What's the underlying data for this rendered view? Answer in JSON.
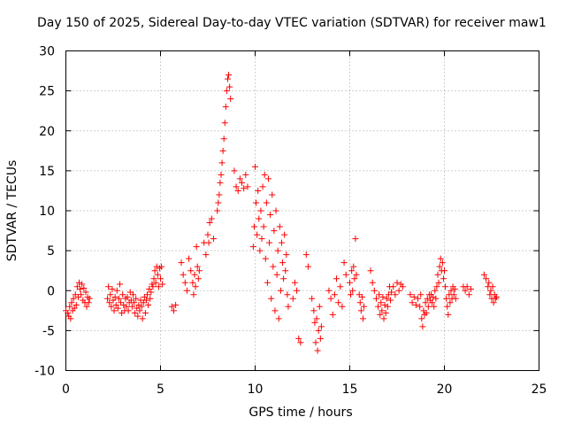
{
  "chart_data": {
    "type": "scatter",
    "title": "Day 150 of 2025, Sidereal Day-to-day VTEC variation (SDTVAR) for receiver maw1",
    "xlabel": "GPS time / hours",
    "ylabel": "SDTVAR / TECUs",
    "xlim": [
      0,
      25
    ],
    "ylim": [
      -10,
      30
    ],
    "xticks": [
      "0",
      "5",
      "10",
      "15",
      "20",
      "25"
    ],
    "yticks": [
      "-10",
      "-5",
      "0",
      "5",
      "10",
      "15",
      "20",
      "25",
      "30"
    ],
    "grid": true,
    "marker": "+",
    "series": [
      {
        "name": "SDTVAR",
        "color": "#ff0000",
        "points": [
          [
            0.0,
            -2.5
          ],
          [
            0.1,
            -2.8
          ],
          [
            0.15,
            -3.2
          ],
          [
            0.2,
            -2.0
          ],
          [
            0.25,
            -3.5
          ],
          [
            0.3,
            -1.5
          ],
          [
            0.35,
            -2.5
          ],
          [
            0.4,
            -1.0
          ],
          [
            0.45,
            -2.2
          ],
          [
            0.5,
            -0.5
          ],
          [
            0.55,
            -1.8
          ],
          [
            0.6,
            0.5
          ],
          [
            0.65,
            -0.8
          ],
          [
            0.7,
            1.0
          ],
          [
            0.75,
            0.2
          ],
          [
            0.8,
            -0.5
          ],
          [
            0.85,
            0.8
          ],
          [
            0.9,
            -1.2
          ],
          [
            0.95,
            0.3
          ],
          [
            1.0,
            -1.5
          ],
          [
            1.05,
            -0.2
          ],
          [
            1.1,
            -2.0
          ],
          [
            1.15,
            -0.8
          ],
          [
            1.2,
            -1.5
          ],
          [
            1.25,
            -1.0
          ],
          [
            2.2,
            -1.0
          ],
          [
            2.25,
            0.5
          ],
          [
            2.3,
            -1.5
          ],
          [
            2.35,
            -0.5
          ],
          [
            2.4,
            -2.0
          ],
          [
            2.45,
            0.2
          ],
          [
            2.5,
            -1.2
          ],
          [
            2.55,
            -2.5
          ],
          [
            2.6,
            -0.8
          ],
          [
            2.65,
            -1.8
          ],
          [
            2.7,
            0.0
          ],
          [
            2.75,
            -2.2
          ],
          [
            2.8,
            -1.0
          ],
          [
            2.85,
            0.8
          ],
          [
            2.9,
            -1.5
          ],
          [
            2.95,
            -2.8
          ],
          [
            3.0,
            -0.5
          ],
          [
            3.05,
            -1.8
          ],
          [
            3.1,
            -2.5
          ],
          [
            3.15,
            -1.0
          ],
          [
            3.2,
            -2.0
          ],
          [
            3.25,
            -0.8
          ],
          [
            3.3,
            -2.5
          ],
          [
            3.35,
            -1.5
          ],
          [
            3.4,
            -0.2
          ],
          [
            3.45,
            -1.2
          ],
          [
            3.5,
            -2.0
          ],
          [
            3.55,
            -0.5
          ],
          [
            3.6,
            -1.5
          ],
          [
            3.65,
            -2.8
          ],
          [
            3.7,
            -1.0
          ],
          [
            3.75,
            -2.2
          ],
          [
            3.8,
            -3.2
          ],
          [
            3.85,
            -1.8
          ],
          [
            3.9,
            -2.5
          ],
          [
            3.95,
            -1.2
          ],
          [
            4.0,
            -2.0
          ],
          [
            4.05,
            -3.5
          ],
          [
            4.1,
            -1.5
          ],
          [
            4.15,
            -0.8
          ],
          [
            4.2,
            -2.8
          ],
          [
            4.25,
            -1.2
          ],
          [
            4.3,
            -0.5
          ],
          [
            4.35,
            -1.8
          ],
          [
            4.4,
            0.2
          ],
          [
            4.45,
            -1.0
          ],
          [
            4.5,
            -0.2
          ],
          [
            4.55,
            0.8
          ],
          [
            4.6,
            0.5
          ],
          [
            4.65,
            1.5
          ],
          [
            4.7,
            2.5
          ],
          [
            4.75,
            1.0
          ],
          [
            4.8,
            3.0
          ],
          [
            4.85,
            2.0
          ],
          [
            4.9,
            0.5
          ],
          [
            4.95,
            2.8
          ],
          [
            5.0,
            1.5
          ],
          [
            5.05,
            3.0
          ],
          [
            5.1,
            0.8
          ],
          [
            5.6,
            -2.0
          ],
          [
            5.7,
            -2.5
          ],
          [
            5.8,
            -1.8
          ],
          [
            6.1,
            3.5
          ],
          [
            6.2,
            2.0
          ],
          [
            6.3,
            1.0
          ],
          [
            6.4,
            0.0
          ],
          [
            6.5,
            4.0
          ],
          [
            6.6,
            2.5
          ],
          [
            6.7,
            1.0
          ],
          [
            6.75,
            -0.5
          ],
          [
            6.8,
            2.0
          ],
          [
            6.85,
            0.5
          ],
          [
            6.9,
            5.5
          ],
          [
            6.95,
            3.0
          ],
          [
            7.0,
            1.5
          ],
          [
            7.05,
            2.5
          ],
          [
            7.3,
            6.0
          ],
          [
            7.4,
            4.5
          ],
          [
            7.5,
            7.0
          ],
          [
            7.55,
            6.0
          ],
          [
            7.6,
            8.5
          ],
          [
            7.7,
            9.0
          ],
          [
            7.8,
            6.5
          ],
          [
            8.0,
            10.0
          ],
          [
            8.05,
            11.0
          ],
          [
            8.1,
            12.0
          ],
          [
            8.15,
            13.5
          ],
          [
            8.2,
            14.5
          ],
          [
            8.25,
            16.0
          ],
          [
            8.3,
            17.5
          ],
          [
            8.35,
            19.0
          ],
          [
            8.4,
            21.0
          ],
          [
            8.45,
            23.0
          ],
          [
            8.5,
            25.0
          ],
          [
            8.55,
            26.5
          ],
          [
            8.6,
            27.0
          ],
          [
            8.65,
            25.5
          ],
          [
            8.7,
            24.0
          ],
          [
            8.9,
            15.0
          ],
          [
            9.0,
            13.0
          ],
          [
            9.1,
            12.5
          ],
          [
            9.2,
            14.0
          ],
          [
            9.3,
            13.5
          ],
          [
            9.4,
            12.8
          ],
          [
            9.5,
            14.5
          ],
          [
            9.6,
            13.0
          ],
          [
            9.9,
            5.5
          ],
          [
            9.95,
            8.0
          ],
          [
            10.0,
            15.5
          ],
          [
            10.05,
            11.0
          ],
          [
            10.1,
            7.0
          ],
          [
            10.15,
            12.5
          ],
          [
            10.2,
            9.0
          ],
          [
            10.25,
            5.0
          ],
          [
            10.3,
            10.0
          ],
          [
            10.35,
            6.5
          ],
          [
            10.4,
            13.0
          ],
          [
            10.45,
            8.0
          ],
          [
            10.5,
            14.5
          ],
          [
            10.55,
            4.0
          ],
          [
            10.6,
            11.0
          ],
          [
            10.65,
            1.0
          ],
          [
            10.7,
            14.0
          ],
          [
            10.75,
            6.0
          ],
          [
            10.8,
            9.5
          ],
          [
            10.85,
            -1.0
          ],
          [
            10.9,
            12.0
          ],
          [
            10.95,
            3.0
          ],
          [
            11.0,
            7.5
          ],
          [
            11.05,
            -2.5
          ],
          [
            11.1,
            10.0
          ],
          [
            11.15,
            2.0
          ],
          [
            11.2,
            5.0
          ],
          [
            11.25,
            -3.5
          ],
          [
            11.3,
            8.0
          ],
          [
            11.35,
            0.0
          ],
          [
            11.4,
            6.0
          ],
          [
            11.45,
            3.5
          ],
          [
            11.5,
            1.5
          ],
          [
            11.55,
            7.0
          ],
          [
            11.6,
            2.5
          ],
          [
            11.65,
            4.5
          ],
          [
            11.7,
            -0.5
          ],
          [
            11.75,
            -2.0
          ],
          [
            12.0,
            -1.0
          ],
          [
            12.1,
            1.0
          ],
          [
            12.2,
            0.0
          ],
          [
            12.3,
            -6.0
          ],
          [
            12.4,
            -6.5
          ],
          [
            12.7,
            4.5
          ],
          [
            12.8,
            3.0
          ],
          [
            13.0,
            -1.0
          ],
          [
            13.1,
            -2.5
          ],
          [
            13.15,
            -4.0
          ],
          [
            13.2,
            -6.5
          ],
          [
            13.25,
            -3.5
          ],
          [
            13.3,
            -7.5
          ],
          [
            13.35,
            -5.0
          ],
          [
            13.4,
            -2.0
          ],
          [
            13.45,
            -6.0
          ],
          [
            13.5,
            -4.5
          ],
          [
            13.9,
            0.0
          ],
          [
            14.0,
            -1.0
          ],
          [
            14.1,
            -3.0
          ],
          [
            14.2,
            -0.5
          ],
          [
            14.3,
            1.5
          ],
          [
            14.4,
            -1.5
          ],
          [
            14.5,
            0.5
          ],
          [
            14.6,
            -2.0
          ],
          [
            14.7,
            3.5
          ],
          [
            14.8,
            2.0
          ],
          [
            15.0,
            1.0
          ],
          [
            15.05,
            -0.5
          ],
          [
            15.1,
            2.5
          ],
          [
            15.15,
            0.0
          ],
          [
            15.2,
            3.0
          ],
          [
            15.25,
            1.5
          ],
          [
            15.3,
            6.5
          ],
          [
            15.35,
            2.0
          ],
          [
            15.5,
            -0.5
          ],
          [
            15.55,
            -1.5
          ],
          [
            15.6,
            -2.5
          ],
          [
            15.65,
            -0.8
          ],
          [
            15.7,
            -3.5
          ],
          [
            15.75,
            -2.0
          ],
          [
            16.1,
            2.5
          ],
          [
            16.2,
            1.0
          ],
          [
            16.3,
            0.0
          ],
          [
            16.4,
            -1.0
          ],
          [
            16.5,
            -2.0
          ],
          [
            16.55,
            -0.5
          ],
          [
            16.6,
            -3.0
          ],
          [
            16.65,
            -1.5
          ],
          [
            16.7,
            -2.5
          ],
          [
            16.75,
            -0.8
          ],
          [
            16.8,
            -3.5
          ],
          [
            16.85,
            -1.8
          ],
          [
            16.9,
            -2.8
          ],
          [
            16.95,
            -1.0
          ],
          [
            17.0,
            -2.0
          ],
          [
            17.05,
            -0.5
          ],
          [
            17.1,
            0.5
          ],
          [
            17.15,
            -1.2
          ],
          [
            17.2,
            -0.2
          ],
          [
            17.3,
            0.5
          ],
          [
            17.4,
            -0.5
          ],
          [
            17.5,
            1.0
          ],
          [
            17.6,
            0.0
          ],
          [
            17.7,
            0.8
          ],
          [
            17.8,
            0.5
          ],
          [
            18.2,
            -0.5
          ],
          [
            18.3,
            -1.5
          ],
          [
            18.4,
            -0.8
          ],
          [
            18.5,
            -1.8
          ],
          [
            18.6,
            -1.0
          ],
          [
            18.7,
            -2.0
          ],
          [
            18.75,
            -0.5
          ],
          [
            18.8,
            -3.5
          ],
          [
            18.85,
            -4.5
          ],
          [
            18.9,
            -2.5
          ],
          [
            18.95,
            -3.0
          ],
          [
            19.0,
            -1.5
          ],
          [
            19.05,
            -2.8
          ],
          [
            19.1,
            -1.0
          ],
          [
            19.15,
            -2.0
          ],
          [
            19.2,
            -0.5
          ],
          [
            19.25,
            -1.2
          ],
          [
            19.3,
            -0.5
          ],
          [
            19.35,
            -1.5
          ],
          [
            19.4,
            -0.8
          ],
          [
            19.45,
            -2.0
          ],
          [
            19.5,
            0.0
          ],
          [
            19.55,
            -1.0
          ],
          [
            19.6,
            0.5
          ],
          [
            19.65,
            2.0
          ],
          [
            19.7,
            1.0
          ],
          [
            19.75,
            3.0
          ],
          [
            19.8,
            4.0
          ],
          [
            19.85,
            2.5
          ],
          [
            19.9,
            3.5
          ],
          [
            19.95,
            1.5
          ],
          [
            20.0,
            2.5
          ],
          [
            20.05,
            0.5
          ],
          [
            20.1,
            -1.0
          ],
          [
            20.15,
            -2.0
          ],
          [
            20.2,
            -3.0
          ],
          [
            20.25,
            -0.5
          ],
          [
            20.3,
            -1.5
          ],
          [
            20.35,
            0.0
          ],
          [
            20.4,
            -1.0
          ],
          [
            20.45,
            0.5
          ],
          [
            20.5,
            -0.5
          ],
          [
            20.55,
            0.2
          ],
          [
            20.6,
            -1.0
          ],
          [
            21.0,
            0.5
          ],
          [
            21.1,
            0.0
          ],
          [
            21.2,
            0.5
          ],
          [
            21.3,
            -0.5
          ],
          [
            21.4,
            0.2
          ],
          [
            22.1,
            2.0
          ],
          [
            22.2,
            1.5
          ],
          [
            22.3,
            0.5
          ],
          [
            22.35,
            1.0
          ],
          [
            22.4,
            -0.5
          ],
          [
            22.45,
            0.0
          ],
          [
            22.5,
            -1.0
          ],
          [
            22.55,
            0.5
          ],
          [
            22.6,
            -1.5
          ],
          [
            22.65,
            -0.5
          ],
          [
            22.7,
            -1.0
          ],
          [
            22.75,
            -0.8
          ]
        ]
      }
    ]
  }
}
